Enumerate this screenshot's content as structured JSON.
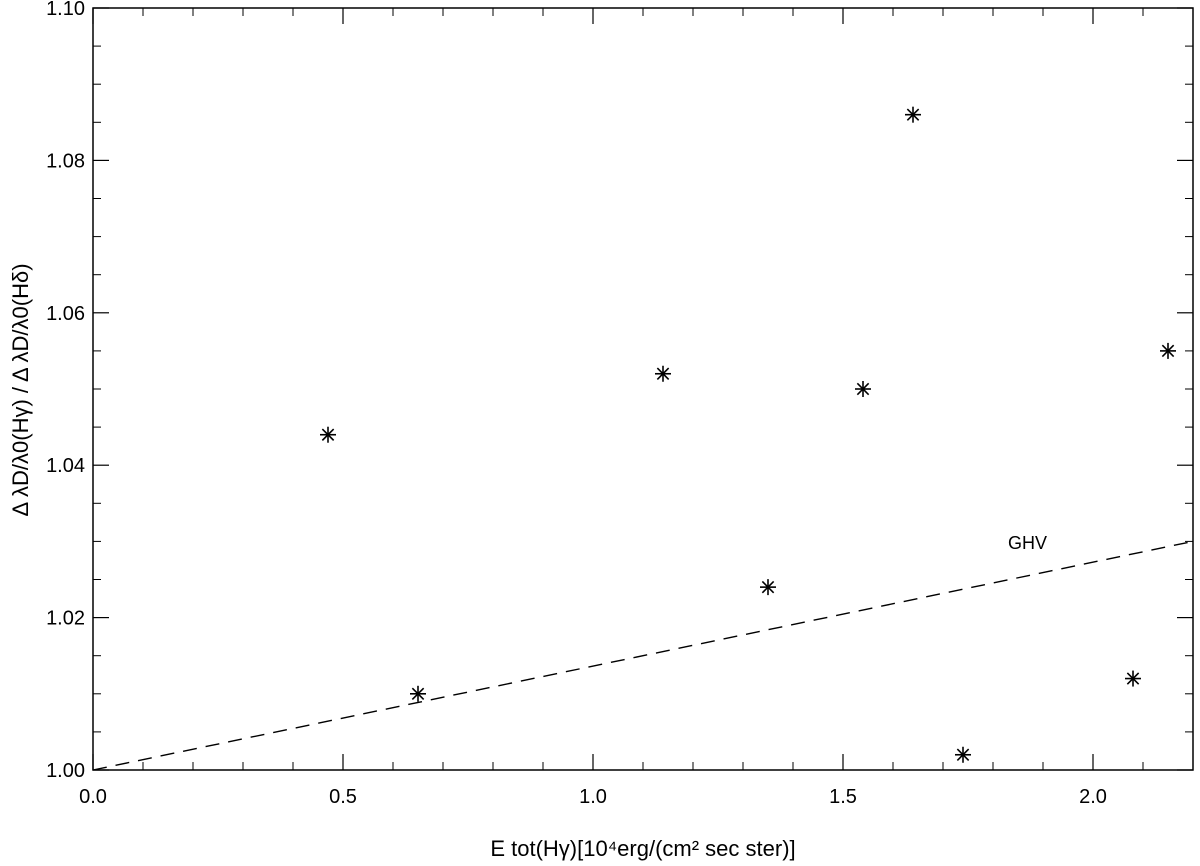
{
  "chart_data": {
    "type": "scatter",
    "title": "",
    "xlabel": "E tot(Hγ)[10⁴erg/(cm² sec ster)]",
    "ylabel": "Δ λD/λ0(Hγ) / Δ λD/λ0(Hδ)",
    "xlim": [
      0.0,
      2.2
    ],
    "ylim": [
      1.0,
      1.1
    ],
    "x_ticks": [
      0.0,
      0.5,
      1.0,
      1.5,
      2.0
    ],
    "x_tick_labels": [
      "0.0",
      "0.5",
      "1.0",
      "1.5",
      "2.0"
    ],
    "y_ticks": [
      1.0,
      1.02,
      1.04,
      1.06,
      1.08,
      1.1
    ],
    "y_tick_labels": [
      "1.00",
      "1.02",
      "1.04",
      "1.06",
      "1.08",
      "1.10"
    ],
    "grid": false,
    "marker": "asterisk",
    "points": [
      {
        "x": 0.47,
        "y": 1.044
      },
      {
        "x": 0.65,
        "y": 1.01
      },
      {
        "x": 1.14,
        "y": 1.052
      },
      {
        "x": 1.35,
        "y": 1.024
      },
      {
        "x": 1.54,
        "y": 1.05
      },
      {
        "x": 1.64,
        "y": 1.086
      },
      {
        "x": 1.74,
        "y": 1.002
      },
      {
        "x": 2.08,
        "y": 1.012
      },
      {
        "x": 2.15,
        "y": 1.055
      }
    ],
    "reference_line": {
      "label": "GHV",
      "style": "dashed",
      "x": [
        0.0,
        2.2
      ],
      "y": [
        1.0,
        1.03
      ]
    },
    "annotations": [
      {
        "text": "GHV",
        "x": 1.83,
        "y": 1.029
      }
    ]
  }
}
